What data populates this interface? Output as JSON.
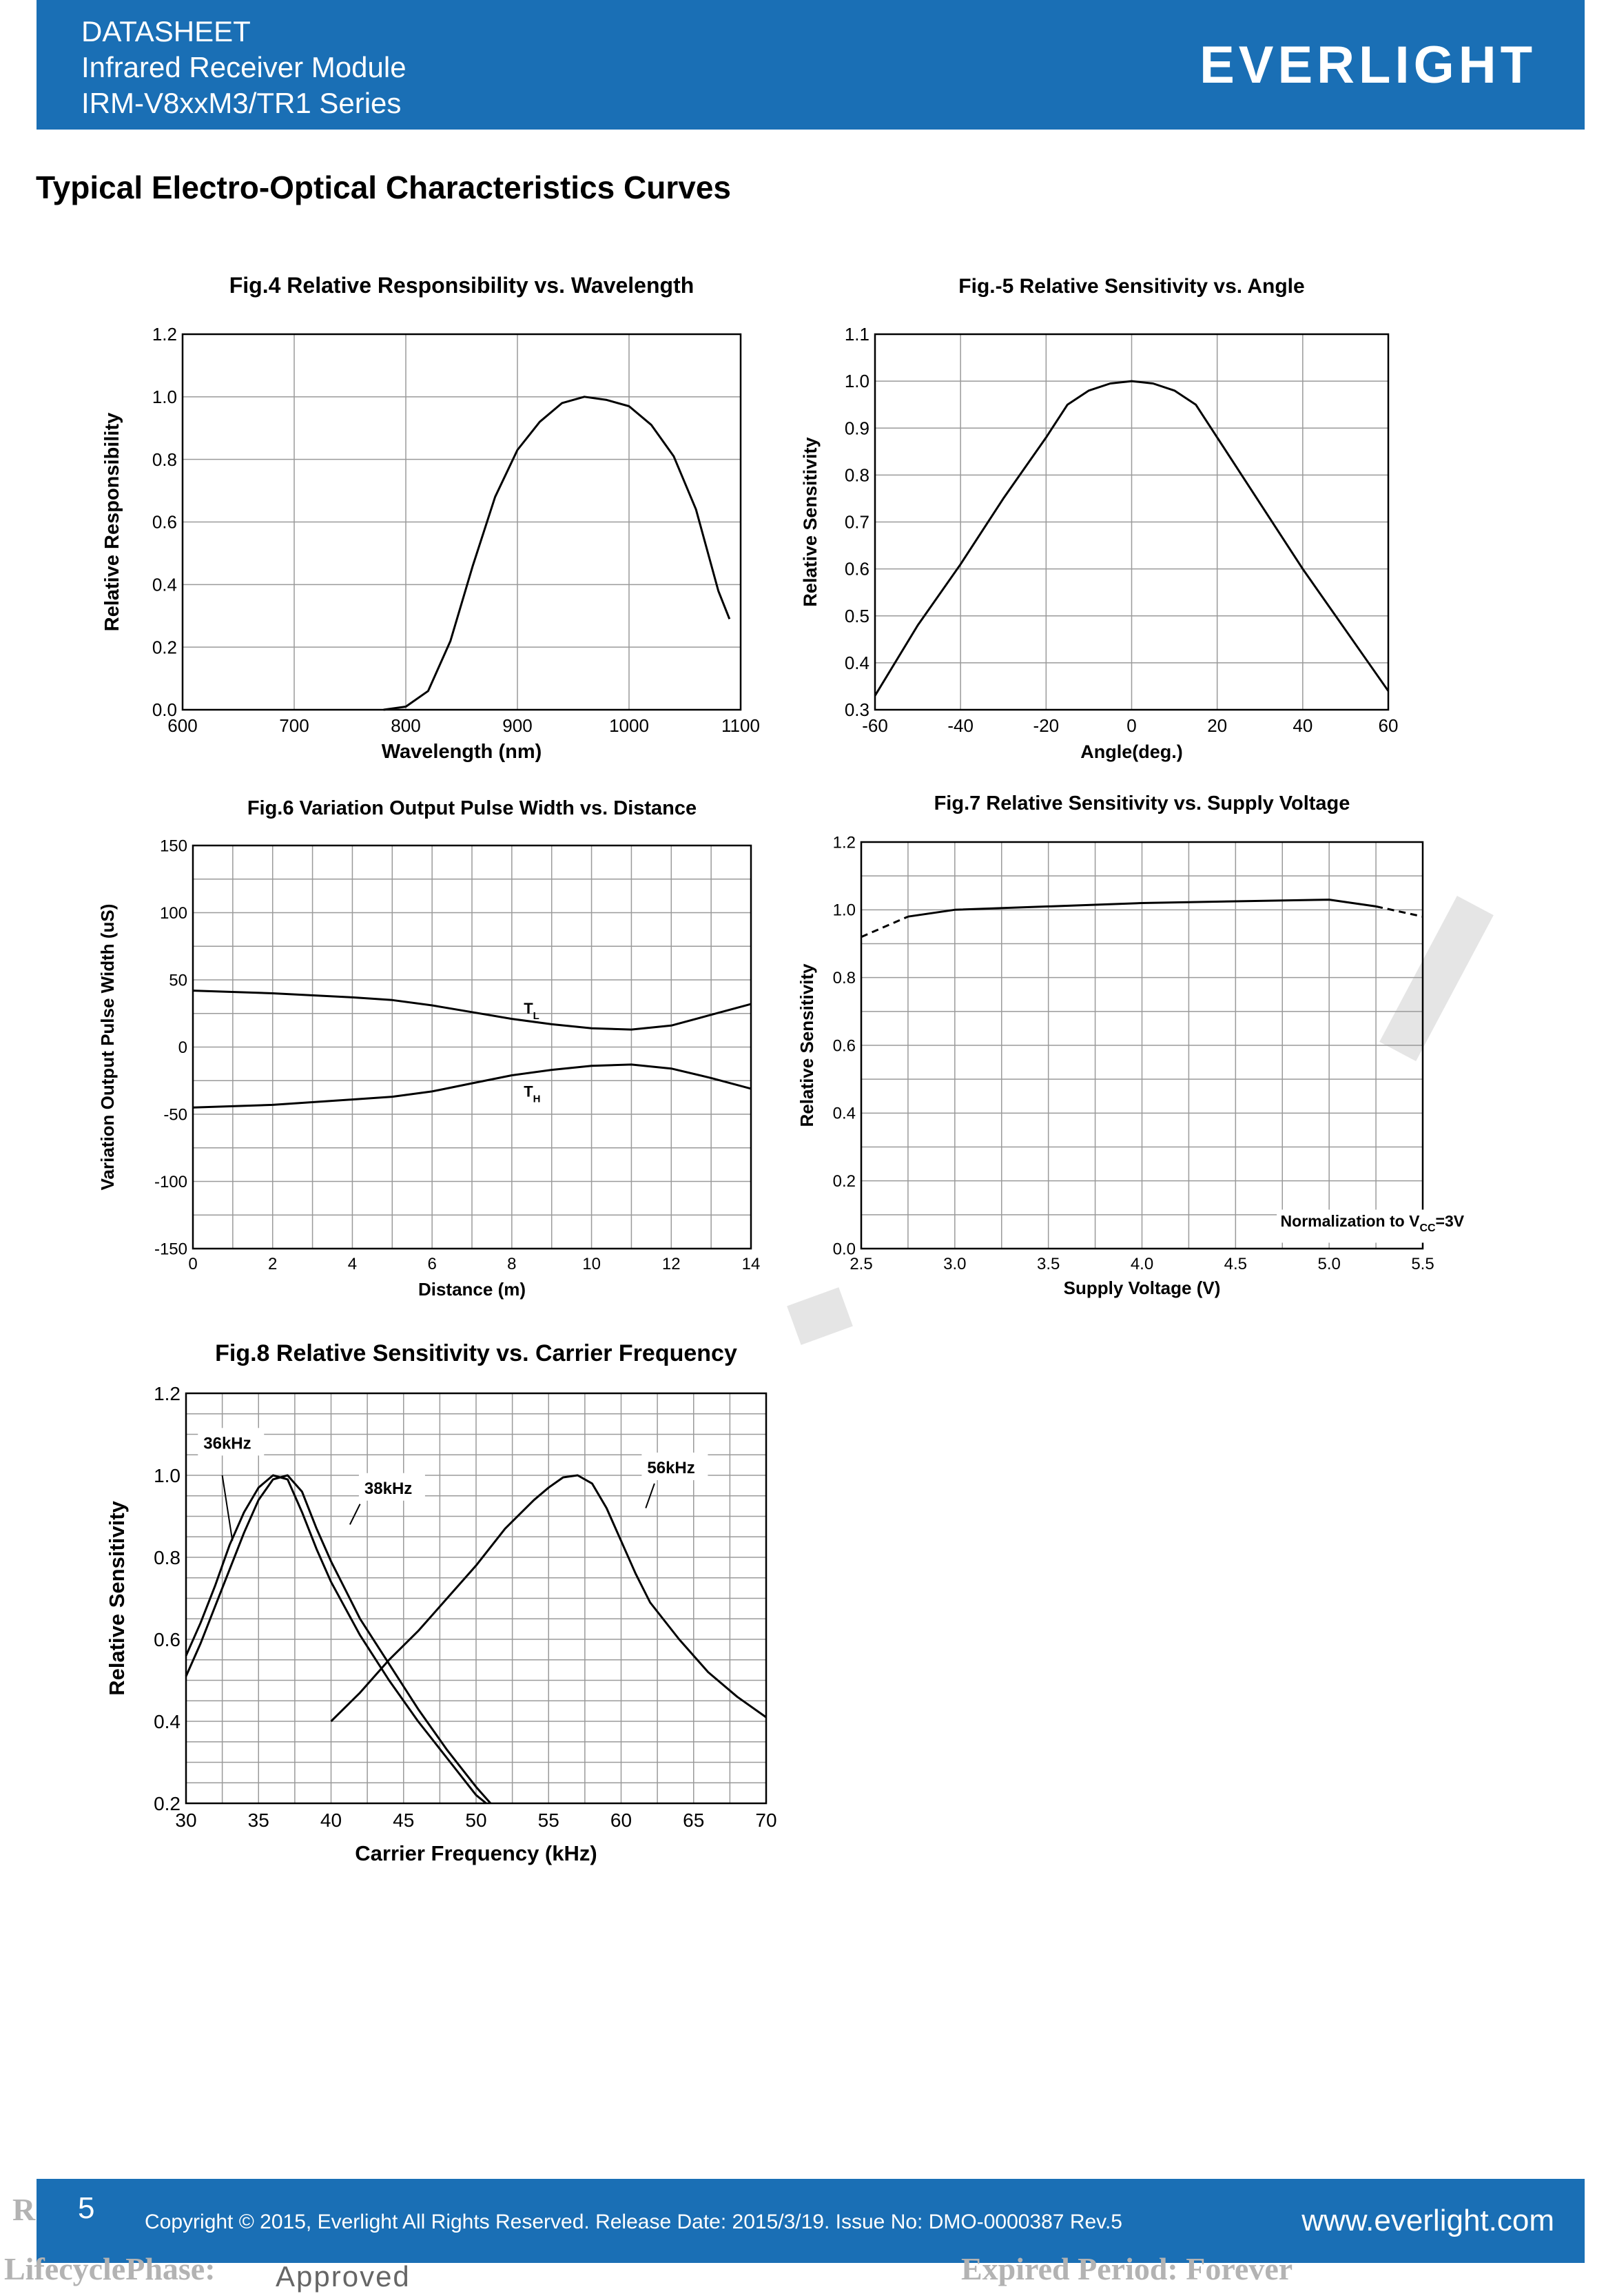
{
  "header": {
    "line1": "DATASHEET",
    "line2": "Infrared Receiver Module",
    "line3": "IRM-V8xxM3/TR1 Series",
    "logo": "EVERLIGHT",
    "color": "#1a6fb5"
  },
  "section_title": "Typical Electro-Optical Characteristics Curves",
  "chart_data": [
    {
      "id": "fig4",
      "type": "line",
      "title": "Fig.4 Relative Responsibility vs. Wavelength",
      "xlabel": "Wavelength (nm)",
      "ylabel": "Relative Responsibility",
      "xlim": [
        600,
        1100
      ],
      "ylim": [
        0,
        1.2
      ],
      "xticks": [
        600,
        700,
        800,
        900,
        1000,
        1100
      ],
      "xtick_labels": [
        "600",
        "700",
        "800",
        "900",
        "1000",
        "1100"
      ],
      "yticks": [
        0,
        0.2,
        0.4,
        0.6,
        0.8,
        1.0,
        1.2
      ],
      "ytick_labels": [
        "0.0",
        "0.2",
        "0.4",
        "0.6",
        "0.8",
        "1.0",
        "1.2"
      ],
      "grid": true,
      "series": [
        {
          "points": [
            [
              780,
              0
            ],
            [
              800,
              0.01
            ],
            [
              820,
              0.06
            ],
            [
              840,
              0.22
            ],
            [
              860,
              0.46
            ],
            [
              880,
              0.68
            ],
            [
              900,
              0.83
            ],
            [
              920,
              0.92
            ],
            [
              940,
              0.98
            ],
            [
              960,
              1.0
            ],
            [
              980,
              0.99
            ],
            [
              1000,
              0.97
            ],
            [
              1020,
              0.91
            ],
            [
              1040,
              0.81
            ],
            [
              1060,
              0.64
            ],
            [
              1080,
              0.38
            ],
            [
              1090,
              0.29
            ]
          ]
        }
      ]
    },
    {
      "id": "fig5",
      "type": "line",
      "title": "Fig.-5 Relative Sensitivity vs. Angle",
      "xlabel": "Angle(deg.)",
      "ylabel": "Relative Sensitivity",
      "xlim": [
        -60,
        60
      ],
      "ylim": [
        0.3,
        1.1
      ],
      "xticks": [
        -60,
        -40,
        -20,
        0,
        20,
        40,
        60
      ],
      "xtick_labels": [
        "-60",
        "-40",
        "-20",
        "0",
        "20",
        "40",
        "60"
      ],
      "yticks": [
        0.3,
        0.4,
        0.5,
        0.6,
        0.7,
        0.8,
        0.9,
        1.0,
        1.1
      ],
      "ytick_labels": [
        "0.3",
        "0.4",
        "0.5",
        "0.6",
        "0.7",
        "0.8",
        "0.9",
        "1.0",
        "1.1"
      ],
      "grid": true,
      "series": [
        {
          "points": [
            [
              -60,
              0.33
            ],
            [
              -50,
              0.48
            ],
            [
              -40,
              0.61
            ],
            [
              -30,
              0.75
            ],
            [
              -20,
              0.88
            ],
            [
              -15,
              0.95
            ],
            [
              -10,
              0.98
            ],
            [
              -5,
              0.995
            ],
            [
              0,
              1.0
            ],
            [
              5,
              0.995
            ],
            [
              10,
              0.98
            ],
            [
              15,
              0.95
            ],
            [
              20,
              0.88
            ],
            [
              30,
              0.74
            ],
            [
              40,
              0.6
            ],
            [
              50,
              0.47
            ],
            [
              60,
              0.34
            ]
          ]
        }
      ]
    },
    {
      "id": "fig6",
      "type": "line",
      "title": "Fig.6 Variation Output Pulse Width vs. Distance",
      "xlabel": "Distance (m)",
      "ylabel": "Variation Output Pulse Width (uS)",
      "xlim": [
        0,
        14
      ],
      "ylim": [
        -150,
        150
      ],
      "xticks": [
        0,
        2,
        4,
        6,
        8,
        10,
        12,
        14
      ],
      "xtick_labels": [
        "0",
        "2",
        "4",
        "6",
        "8",
        "10",
        "12",
        "14"
      ],
      "yticks": [
        -150,
        -100,
        -50,
        0,
        50,
        100,
        150
      ],
      "ytick_labels": [
        "-150",
        "-100",
        "-50",
        "0",
        "50",
        "100",
        "150"
      ],
      "grid": true,
      "annotations": {
        "tl": "T",
        "tl_sub": "L",
        "th": "T",
        "th_sub": "H"
      },
      "series": [
        {
          "points": [
            [
              0,
              42
            ],
            [
              2,
              40
            ],
            [
              4,
              37
            ],
            [
              5,
              35
            ],
            [
              6,
              31
            ],
            [
              7,
              26
            ],
            [
              8,
              21
            ],
            [
              9,
              17
            ],
            [
              10,
              14
            ],
            [
              11,
              13
            ],
            [
              12,
              16
            ],
            [
              13,
              24
            ],
            [
              14,
              32
            ]
          ]
        },
        {
          "points": [
            [
              0,
              -45
            ],
            [
              2,
              -43
            ],
            [
              4,
              -39
            ],
            [
              5,
              -37
            ],
            [
              6,
              -33
            ],
            [
              7,
              -27
            ],
            [
              8,
              -21
            ],
            [
              9,
              -17
            ],
            [
              10,
              -14
            ],
            [
              11,
              -13
            ],
            [
              12,
              -16
            ],
            [
              13,
              -23
            ],
            [
              14,
              -31
            ]
          ]
        }
      ]
    },
    {
      "id": "fig7",
      "type": "line",
      "title": "Fig.7 Relative Sensitivity vs. Supply Voltage",
      "xlabel": "Supply Voltage (V)",
      "ylabel": "Relative Sensitivity",
      "xlim": [
        2.5,
        5.5
      ],
      "ylim": [
        0,
        1.2
      ],
      "xticks": [
        2.5,
        3.0,
        3.5,
        4.0,
        4.5,
        5.0,
        5.5
      ],
      "xtick_labels": [
        "2.5",
        "3.0",
        "3.5",
        "4.0",
        "4.5",
        "5.0",
        "5.5"
      ],
      "yticks": [
        0,
        0.2,
        0.4,
        0.6,
        0.8,
        1.0,
        1.2
      ],
      "ytick_labels": [
        "0.0",
        "0.2",
        "0.4",
        "0.6",
        "0.8",
        "1.0",
        "1.2"
      ],
      "grid": true,
      "note": "Normalization to V",
      "note_sub": "CC",
      "note_end": "=3V",
      "series": [
        {
          "style": "dashed",
          "points": [
            [
              2.5,
              0.92
            ],
            [
              2.75,
              0.98
            ]
          ]
        },
        {
          "style": "solid",
          "points": [
            [
              2.75,
              0.98
            ],
            [
              3.0,
              1.0
            ],
            [
              3.5,
              1.01
            ],
            [
              4.0,
              1.02
            ],
            [
              4.5,
              1.025
            ],
            [
              5.0,
              1.03
            ],
            [
              5.25,
              1.01
            ]
          ]
        },
        {
          "style": "dashed",
          "points": [
            [
              5.25,
              1.01
            ],
            [
              5.5,
              0.98
            ]
          ]
        }
      ]
    },
    {
      "id": "fig8",
      "type": "line",
      "title": "Fig.8 Relative Sensitivity vs. Carrier Frequency",
      "xlabel": "Carrier Frequency (kHz)",
      "ylabel": "Relative Sensitivity",
      "xlim": [
        30,
        70
      ],
      "ylim": [
        0.2,
        1.2
      ],
      "xticks": [
        30,
        35,
        40,
        45,
        50,
        55,
        60,
        65,
        70
      ],
      "xtick_labels": [
        "30",
        "35",
        "40",
        "45",
        "50",
        "55",
        "60",
        "65",
        "70"
      ],
      "yticks": [
        0.2,
        0.4,
        0.6,
        0.8,
        1.0,
        1.2
      ],
      "ytick_labels": [
        "0.2",
        "0.4",
        "0.6",
        "0.8",
        "1.0",
        "1.2"
      ],
      "grid": true,
      "series": [
        {
          "name": "36kHz",
          "points": [
            [
              30,
              0.56
            ],
            [
              31,
              0.64
            ],
            [
              32,
              0.73
            ],
            [
              33,
              0.83
            ],
            [
              34,
              0.91
            ],
            [
              35,
              0.97
            ],
            [
              36,
              1.0
            ],
            [
              37,
              0.99
            ],
            [
              38,
              0.91
            ],
            [
              39,
              0.82
            ],
            [
              40,
              0.74
            ],
            [
              42,
              0.61
            ],
            [
              44,
              0.5
            ],
            [
              46,
              0.4
            ],
            [
              48,
              0.31
            ],
            [
              50,
              0.22
            ],
            [
              50.7,
              0.2
            ]
          ]
        },
        {
          "name": "38kHz",
          "points": [
            [
              30,
              0.51
            ],
            [
              31,
              0.59
            ],
            [
              32,
              0.68
            ],
            [
              33,
              0.77
            ],
            [
              34,
              0.86
            ],
            [
              35,
              0.94
            ],
            [
              36,
              0.99
            ],
            [
              37,
              1.0
            ],
            [
              38,
              0.96
            ],
            [
              39,
              0.87
            ],
            [
              40,
              0.79
            ],
            [
              42,
              0.65
            ],
            [
              44,
              0.54
            ],
            [
              46,
              0.43
            ],
            [
              48,
              0.33
            ],
            [
              50,
              0.24
            ],
            [
              51,
              0.2
            ]
          ]
        },
        {
          "name": "56kHz",
          "points": [
            [
              40,
              0.4
            ],
            [
              42,
              0.47
            ],
            [
              44,
              0.55
            ],
            [
              46,
              0.62
            ],
            [
              48,
              0.7
            ],
            [
              50,
              0.78
            ],
            [
              52,
              0.87
            ],
            [
              54,
              0.94
            ],
            [
              55,
              0.97
            ],
            [
              56,
              0.995
            ],
            [
              57,
              1.0
            ],
            [
              58,
              0.98
            ],
            [
              59,
              0.92
            ],
            [
              60,
              0.84
            ],
            [
              61,
              0.76
            ],
            [
              62,
              0.69
            ],
            [
              64,
              0.6
            ],
            [
              66,
              0.52
            ],
            [
              68,
              0.46
            ],
            [
              70,
              0.41
            ]
          ]
        }
      ]
    }
  ],
  "footer": {
    "page": "5",
    "copyright": "Copyright © 2015, Everlight All Rights Reserved. Release Date: 2015/3/19. Issue No: DMO-0000387 Rev.5",
    "website": "www.everlight.com",
    "color": "#1a6fb5"
  },
  "stamp": {
    "r_fragment": "R",
    "lifecycle": "LifecyclePhase:",
    "status": "Approved",
    "expired": "Expired Period: Forever"
  }
}
